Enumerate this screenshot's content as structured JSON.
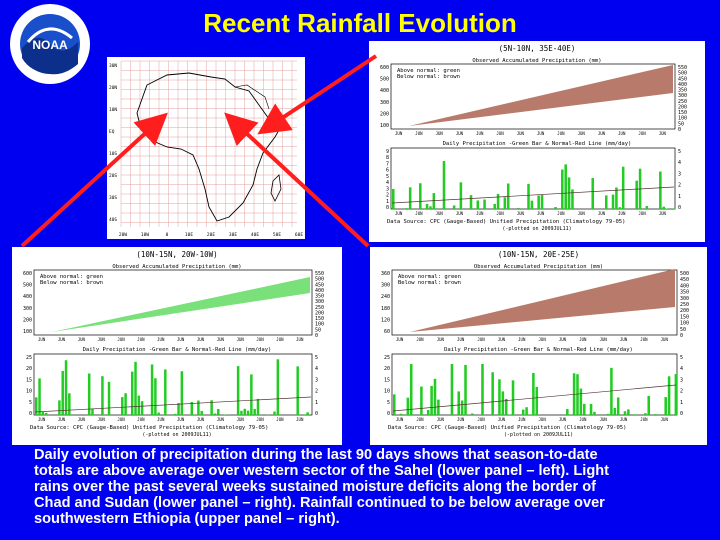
{
  "slide": {
    "title": "Recent Rainfall Evolution",
    "logo_text": "NATIONAL OCEANIC AND ATMOSPHERIC ADMINISTRATION · U.S. DEPARTMENT OF COMMERCE",
    "logo_center": "NOAA",
    "caption_lines": [
      "Daily evolution of precipitation during the last 90 days shows that season-to-date",
      "totals are above average over western sector of the Sahel (lower panel – left).  Light",
      "rains over the past several weeks sustained moisture deficits along the border of",
      "Chad and Sudan (lower panel – right).  Rainfall continued to be below average over",
      "southwestern Ethiopia (upper panel – right)."
    ]
  },
  "colors": {
    "background": "#0000f0",
    "title": "#ffff00",
    "arrow": "#ff1e1e",
    "green": "#22cc22",
    "brown": "#b87a6a",
    "light_green": "#7ae07a"
  },
  "panels": {
    "upper_right": {
      "region": "(5N-10N, 35E-40E)",
      "cum_title": "Observed Accumulated Precipitation (mm)",
      "legend1": "Above normal: green",
      "legend2": "Below normal: brown",
      "daily_title": "Daily Precipitation -Green Bar & Normal-Red Line (mm/day)",
      "source": "Data Source: CPC (Gauge-Based) Unified Precipitation (Climatology 79-05)",
      "footer": "(-plotted on 2009JUL11)",
      "cum_yticks": [
        "600",
        "500",
        "400",
        "300",
        "200",
        "100"
      ],
      "cum_y2ticks": [
        "550",
        "500",
        "450",
        "400",
        "350",
        "300",
        "250",
        "200",
        "150",
        "100",
        "50",
        "0"
      ],
      "daily_yticks": [
        "9",
        "8",
        "7",
        "6",
        "5",
        "4",
        "3",
        "2",
        "1",
        "0"
      ],
      "daily_y2ticks": [
        "5",
        "4",
        "3",
        "2",
        "1",
        "0"
      ]
    },
    "lower_left": {
      "region": "(10N-15N, 20W-10W)",
      "cum_title": "Observed Accumulated Precipitation (mm)",
      "legend1": "Above normal: green",
      "legend2": "Below normal: brown",
      "daily_title": "Daily Precipitation -Green Bar & Normal-Red Line (mm/day)",
      "source": "Data Source: CPC (Gauge-Based) Unified Precipitation (Climatology 79-05)",
      "footer": "(-plotted on 2009JUL11)",
      "cum_yticks": [
        "600",
        "500",
        "400",
        "300",
        "200",
        "100"
      ],
      "cum_y2ticks": [
        "550",
        "500",
        "450",
        "400",
        "350",
        "300",
        "250",
        "200",
        "150",
        "100",
        "50",
        "0"
      ],
      "daily_yticks": [
        "25",
        "20",
        "15",
        "10",
        "5",
        "0"
      ],
      "daily_y2ticks": [
        "5",
        "4",
        "3",
        "2",
        "1",
        "0"
      ]
    },
    "lower_right": {
      "region": "(10N-15N, 20E-25E)",
      "cum_title": "Observed Accumulated Precipitation (mm)",
      "legend1": "Above normal: green",
      "legend2": "Below normal: brown",
      "daily_title": "Daily Precipitation -Green Bar & Normal-Red Line (mm/day)",
      "source": "Data Source: CPC (Gauge-Based) Unified Precipitation (Climatology 79-05)",
      "footer": "(-plotted on 2009JUL11)",
      "cum_yticks": [
        "360",
        "300",
        "240",
        "180",
        "120",
        "60"
      ],
      "cum_y2ticks": [
        "500",
        "450",
        "400",
        "350",
        "300",
        "250",
        "200",
        "150",
        "100",
        "50",
        "0"
      ],
      "daily_yticks": [
        "25",
        "20",
        "15",
        "10",
        "5",
        "0"
      ],
      "daily_y2ticks": [
        "5",
        "4",
        "3",
        "2",
        "1",
        "0"
      ]
    },
    "map": {
      "lon_labels": [
        "20W",
        "10W",
        "0",
        "10E",
        "20E",
        "30E",
        "40E",
        "50E",
        "60E"
      ],
      "lat_labels": [
        "30N",
        "20N",
        "10N",
        "EQ",
        "10S",
        "20S",
        "30S",
        "40S"
      ]
    }
  }
}
